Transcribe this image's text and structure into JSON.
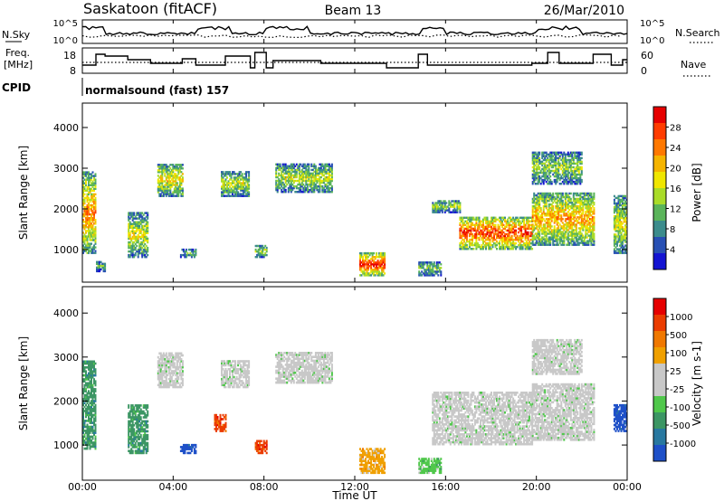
{
  "header": {
    "station": "Saskatoon (fitACF)",
    "beam": "Beam 13",
    "date": "26/Mar/2010"
  },
  "noise_panel": {
    "left_label": "N.Sky",
    "right_label": "N.Search",
    "left_ticks": [
      "10^5",
      "10^0"
    ],
    "right_ticks": [
      "10^5",
      "10^0"
    ]
  },
  "freq_panel": {
    "left_label_line1": "Freq.",
    "left_label_line2": "[MHz]",
    "right_label": "Nave",
    "left_ticks": [
      "18",
      "8"
    ],
    "right_ticks": [
      "60",
      "0"
    ]
  },
  "cpid": {
    "label": "CPID",
    "value": "normalsound (fast) 157"
  },
  "time_axis": {
    "title": "Time UT",
    "tick_labels": [
      "00:00",
      "04:00",
      "08:00",
      "12:00",
      "16:00",
      "20:00",
      "00:00"
    ]
  },
  "chart_data": [
    {
      "type": "heatmap",
      "name": "power",
      "ylabel": "Slant Range [km]",
      "yticks": [
        1000,
        2000,
        3000,
        4000
      ],
      "ylim": [
        200,
        4600
      ],
      "xlim_hours": [
        0,
        24
      ],
      "colorbar": {
        "title": "Power [dB]",
        "ticks": [
          "4",
          "8",
          "12",
          "16",
          "20",
          "24",
          "28"
        ],
        "colors": [
          "#1414d2",
          "#2850b4",
          "#3c8c8c",
          "#5ab45a",
          "#aadc28",
          "#f0e600",
          "#f5b400",
          "#ff7800",
          "#ff3c00",
          "#e60000"
        ]
      },
      "echo_regions": [
        {
          "t0": 0.0,
          "t1": 0.6,
          "r0": 900,
          "r1": 2900,
          "level": 0.75
        },
        {
          "t0": 0.6,
          "t1": 1.0,
          "r0": 450,
          "r1": 700,
          "level": 0.3
        },
        {
          "t0": 2.0,
          "t1": 2.9,
          "r0": 800,
          "r1": 1900,
          "level": 0.55
        },
        {
          "t0": 3.3,
          "t1": 4.4,
          "r0": 2300,
          "r1": 3100,
          "level": 0.6
        },
        {
          "t0": 4.3,
          "t1": 5.0,
          "r0": 800,
          "r1": 1000,
          "level": 0.35
        },
        {
          "t0": 6.1,
          "t1": 7.3,
          "r0": 2300,
          "r1": 2900,
          "level": 0.5
        },
        {
          "t0": 7.6,
          "t1": 8.1,
          "r0": 800,
          "r1": 1100,
          "level": 0.45
        },
        {
          "t0": 8.5,
          "t1": 11.0,
          "r0": 2400,
          "r1": 3100,
          "level": 0.5
        },
        {
          "t0": 12.2,
          "t1": 13.3,
          "r0": 350,
          "r1": 900,
          "level": 0.95
        },
        {
          "t0": 14.8,
          "t1": 15.8,
          "r0": 350,
          "r1": 700,
          "level": 0.4
        },
        {
          "t0": 15.4,
          "t1": 16.6,
          "r0": 1900,
          "r1": 2200,
          "level": 0.45
        },
        {
          "t0": 16.6,
          "t1": 19.8,
          "r0": 1000,
          "r1": 1800,
          "level": 0.9
        },
        {
          "t0": 19.8,
          "t1": 22.5,
          "r0": 1100,
          "r1": 2400,
          "level": 0.7
        },
        {
          "t0": 19.8,
          "t1": 22.0,
          "r0": 2600,
          "r1": 3400,
          "level": 0.45
        },
        {
          "t0": 23.4,
          "t1": 24.0,
          "r0": 900,
          "r1": 2300,
          "level": 0.55
        }
      ]
    },
    {
      "type": "heatmap",
      "name": "velocity",
      "ylabel": "Slant Range [km]",
      "yticks": [
        1000,
        2000,
        3000,
        4000
      ],
      "ylim": [
        200,
        4600
      ],
      "xlim_hours": [
        0,
        24
      ],
      "colorbar": {
        "title": "Velocity [m s-1]",
        "ticks": [
          "1000",
          "500",
          "100",
          "25",
          "-25",
          "-100",
          "-500",
          "-1000"
        ],
        "colors": [
          "#1e50c8",
          "#2878a0",
          "#3c9664",
          "#50c84b",
          "#c8c8c8",
          "#c8c8c8",
          "#f0a000",
          "#f07800",
          "#eb3c00",
          "#e60000"
        ]
      },
      "echo_regions": [
        {
          "t0": 0.0,
          "t1": 0.6,
          "r0": 900,
          "r1": 2900,
          "color": 2
        },
        {
          "t0": 2.0,
          "t1": 2.9,
          "r0": 800,
          "r1": 1900,
          "color": 2
        },
        {
          "t0": 3.3,
          "t1": 4.4,
          "r0": 2300,
          "r1": 3100,
          "color": 4
        },
        {
          "t0": 4.3,
          "t1": 5.0,
          "r0": 800,
          "r1": 1000,
          "color": 0
        },
        {
          "t0": 5.8,
          "t1": 6.3,
          "r0": 1300,
          "r1": 1700,
          "color": 8
        },
        {
          "t0": 6.1,
          "t1": 7.3,
          "r0": 2300,
          "r1": 2900,
          "color": 4
        },
        {
          "t0": 7.6,
          "t1": 8.1,
          "r0": 800,
          "r1": 1100,
          "color": 8
        },
        {
          "t0": 8.5,
          "t1": 11.0,
          "r0": 2400,
          "r1": 3100,
          "color": 4
        },
        {
          "t0": 12.2,
          "t1": 13.3,
          "r0": 350,
          "r1": 900,
          "color": 6
        },
        {
          "t0": 14.8,
          "t1": 15.8,
          "r0": 350,
          "r1": 700,
          "color": 3
        },
        {
          "t0": 15.4,
          "t1": 19.8,
          "r0": 1000,
          "r1": 2200,
          "color": 4
        },
        {
          "t0": 19.8,
          "t1": 22.5,
          "r0": 1100,
          "r1": 2400,
          "color": 4
        },
        {
          "t0": 19.8,
          "t1": 22.0,
          "r0": 2600,
          "r1": 3400,
          "color": 4
        },
        {
          "t0": 23.4,
          "t1": 24.0,
          "r0": 1300,
          "r1": 1900,
          "color": 0
        }
      ]
    }
  ]
}
